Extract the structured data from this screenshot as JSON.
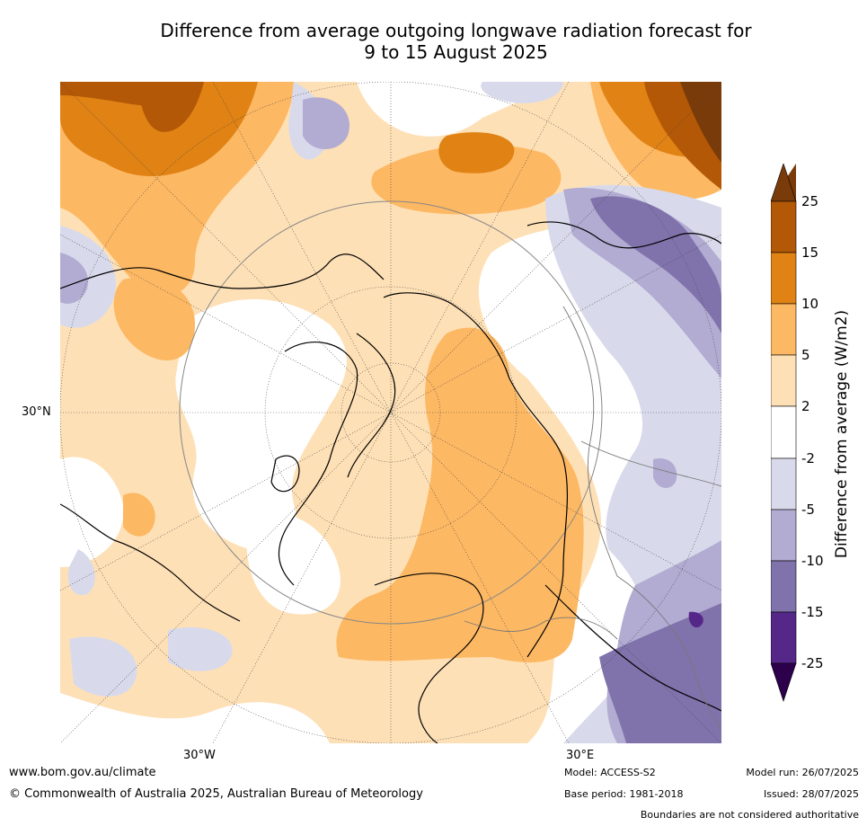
{
  "title_line1": "Difference from average outgoing longwave radiation forecast for",
  "title_line2": "9 to 15 August 2025",
  "lat_label": "30°N",
  "lon_labels": {
    "west": "30°W",
    "east": "30°E"
  },
  "colorbar": {
    "label": "Difference from average (W/m2)",
    "ticks": [
      "25",
      "15",
      "10",
      "5",
      "2",
      "-2",
      "-5",
      "-10",
      "-15",
      "-25"
    ],
    "colors": {
      "over": "#7a3b0a",
      "b15_25": "#b35806",
      "b10_15": "#e08214",
      "b5_10": "#fdb863",
      "b2_5": "#fee0b6",
      "b_neutral": "#ffffff",
      "bm2_m5": "#d8daeb",
      "bm5_m10": "#b2abd2",
      "bm10_m15": "#8073ac",
      "bm15_m25": "#542788",
      "under": "#2d004b"
    }
  },
  "footer": {
    "website": "www.bom.gov.au/climate",
    "copyright": "© Commonwealth of Australia 2025, Australian Bureau of Meteorology",
    "model": "Model: ACCESS-S2",
    "base_period": "Base period: 1981-2018",
    "model_run": "Model run: 26/07/2025",
    "issued": "Issued: 28/07/2025",
    "disclaimer": "Boundaries are not considered authoritative"
  }
}
